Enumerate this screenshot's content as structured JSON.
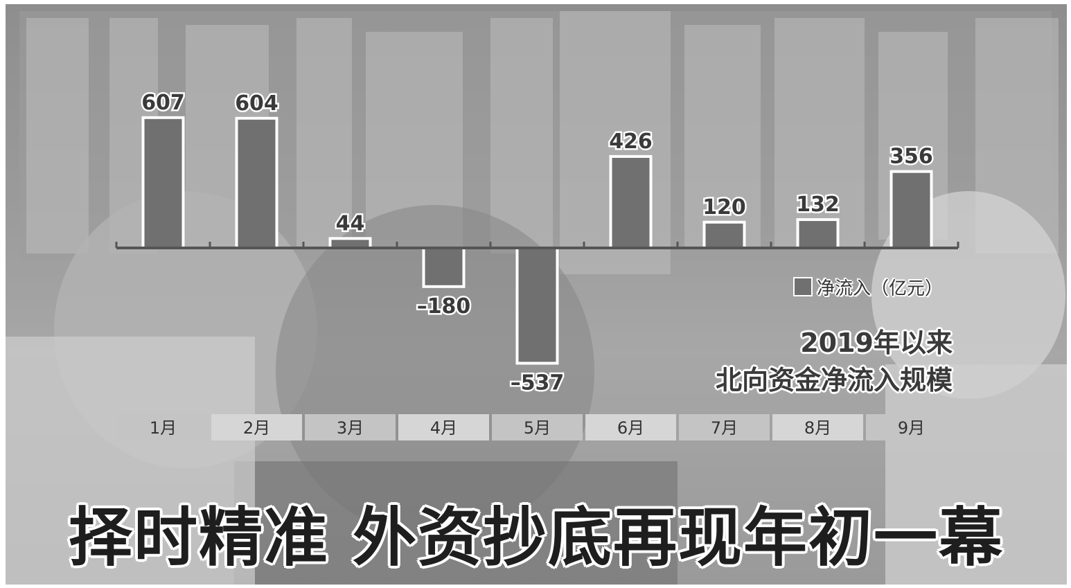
{
  "title": "择时精准  外资抄底再现年初一幕",
  "chart_data": {
    "type": "bar",
    "title_lines": [
      "2019年以来",
      "北向资金净流入规模"
    ],
    "categories": [
      "1月",
      "2月",
      "3月",
      "4月",
      "5月",
      "6月",
      "7月",
      "8月",
      "9月"
    ],
    "series": [
      {
        "name": "净流入（亿元）",
        "values": [
          607,
          604,
          44,
          -180,
          -537,
          426,
          120,
          132,
          356
        ]
      }
    ],
    "value_labels": [
      "607",
      "604",
      "44",
      "–180",
      "–537",
      "426",
      "120",
      "132",
      "356"
    ],
    "ylim": [
      -600,
      650
    ],
    "grid": false,
    "legend_position": "right",
    "colors": {
      "bar": "#707070",
      "bar_outline": "#ffffff"
    }
  }
}
